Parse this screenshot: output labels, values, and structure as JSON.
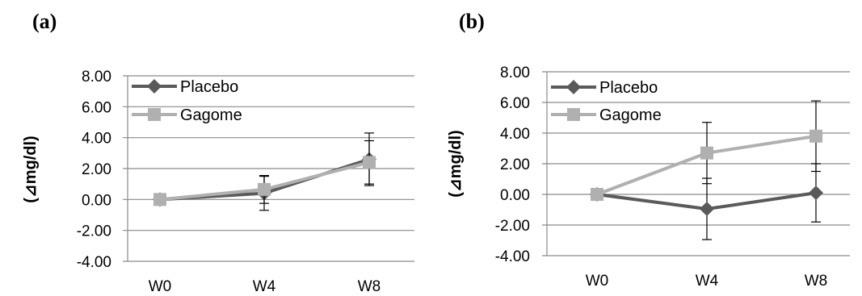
{
  "chart_data": [
    {
      "type": "line",
      "panel_label": "(a)",
      "ylabel": "(⊿mg/dl)",
      "categories": [
        "W0",
        "W4",
        "W8"
      ],
      "ylim": [
        -4,
        8
      ],
      "yticks": [
        "8.00",
        "6.00",
        "4.00",
        "2.00",
        "0.00",
        "-2.00",
        "-4.00"
      ],
      "grid": true,
      "legend_position": "top-left",
      "series": [
        {
          "name": "Placebo",
          "values": [
            0.0,
            0.4,
            2.6
          ],
          "errors": [
            0.0,
            1.1,
            1.7
          ],
          "color": "#5a5a5a",
          "marker": "diamond"
        },
        {
          "name": "Gagome",
          "values": [
            0.0,
            0.65,
            2.4
          ],
          "errors": [
            0.0,
            0.9,
            1.4
          ],
          "color": "#b0b0b0",
          "marker": "square"
        }
      ]
    },
    {
      "type": "line",
      "panel_label": "(b)",
      "ylabel": "(⊿mg/dl)",
      "categories": [
        "W0",
        "W4",
        "W8"
      ],
      "ylim": [
        -4,
        8
      ],
      "yticks": [
        "8.00",
        "6.00",
        "4.00",
        "2.00",
        "0.00",
        "-2.00",
        "-4.00"
      ],
      "grid": true,
      "legend_position": "top-left",
      "series": [
        {
          "name": "Placebo",
          "values": [
            0.0,
            -0.95,
            0.1
          ],
          "errors": [
            0.0,
            2.0,
            1.9
          ],
          "color": "#5a5a5a",
          "marker": "diamond"
        },
        {
          "name": "Gagome",
          "values": [
            0.0,
            2.7,
            3.8
          ],
          "errors": [
            0.0,
            2.0,
            2.3
          ],
          "color": "#b0b0b0",
          "marker": "square"
        }
      ]
    }
  ]
}
